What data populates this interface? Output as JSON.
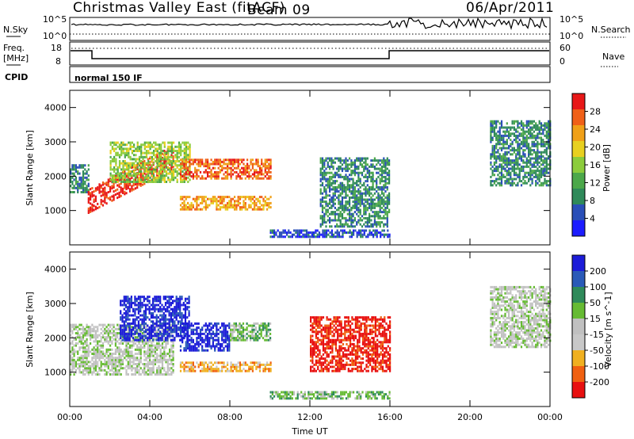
{
  "header": {
    "title": "Christmas Valley East (fitACF)",
    "beam": "Beam 09",
    "date": "06/Apr/2011"
  },
  "summary": {
    "nsky_label": "N.Sky",
    "nsky_ticks": [
      "10^5",
      "10^0"
    ],
    "nsearch_label": "N.Search",
    "freq_label": "Freq.",
    "freq_unit": "[MHz]",
    "freq_ticks": [
      "18",
      "8"
    ],
    "nave_label": "Nave",
    "nave_ticks": [
      "60",
      "0"
    ],
    "cpid_label": "CPID",
    "cpid_value": "normal 150 IF"
  },
  "colors": {
    "power": [
      "#1c1cff",
      "#2a4fb8",
      "#2f8a5a",
      "#4ca84a",
      "#8ccc3c",
      "#e8d020",
      "#f0a018",
      "#f06018",
      "#e81818"
    ],
    "velocity": [
      "#1c1cd8",
      "#2a5ab8",
      "#2f8a5a",
      "#66bb33",
      "#c0c0c0",
      "#c8c8c8",
      "#f0b020",
      "#f06010",
      "#e81010"
    ]
  },
  "chart_data": [
    {
      "type": "heatmap",
      "panel": "power",
      "xlabel": "",
      "ylabel": "Slant Range [km]",
      "xlim": [
        "00:00",
        "24:00"
      ],
      "ylim": [
        0,
        4500
      ],
      "yticks": [
        "1000",
        "2000",
        "3000",
        "4000"
      ],
      "colorbar_label": "Power [dB]",
      "colorbar_ticks": [
        "4",
        "8",
        "12",
        "16",
        "20",
        "24",
        "28"
      ],
      "bands": [
        {
          "from": 0.0,
          "to": 0.9,
          "low": 1500,
          "high": 2300,
          "level": 2
        },
        {
          "from": 0.9,
          "to": 5.2,
          "low": 900,
          "high": 1600,
          "rise": 1300,
          "level": 8
        },
        {
          "from": 2.0,
          "to": 6.0,
          "low": 1800,
          "high": 3000,
          "level": 4
        },
        {
          "from": 5.5,
          "to": 10.0,
          "low": 1900,
          "high": 2500,
          "level": 7
        },
        {
          "from": 5.5,
          "to": 10.0,
          "low": 1000,
          "high": 1400,
          "level": 6
        },
        {
          "from": 10.0,
          "to": 16.0,
          "low": 200,
          "high": 400,
          "level": 1
        },
        {
          "from": 12.5,
          "to": 16.0,
          "low": 500,
          "high": 2500,
          "level": 2
        },
        {
          "from": 21.0,
          "to": 24.0,
          "low": 1700,
          "high": 3600,
          "level": 2
        }
      ]
    },
    {
      "type": "heatmap",
      "panel": "velocity",
      "xlabel": "Time UT",
      "ylabel": "Slant Range [km]",
      "xlim": [
        "00:00",
        "24:00"
      ],
      "ylim": [
        0,
        4500
      ],
      "xticks": [
        "00:00",
        "04:00",
        "08:00",
        "12:00",
        "16:00",
        "20:00",
        "00:00"
      ],
      "yticks": [
        "1000",
        "2000",
        "3000",
        "4000"
      ],
      "colorbar_label": "Velocity [m s^-1]",
      "colorbar_ticks": [
        "200",
        "100",
        "50",
        "15",
        "-15",
        "-50",
        "-100",
        "-200"
      ],
      "bands": [
        {
          "from": 0.0,
          "to": 5.2,
          "low": 900,
          "high": 2400,
          "level": 4
        },
        {
          "from": 2.5,
          "to": 6.0,
          "low": 1900,
          "high": 3200,
          "level": 0
        },
        {
          "from": 5.5,
          "to": 8.0,
          "low": 1600,
          "high": 2400,
          "level": 0
        },
        {
          "from": 8.0,
          "to": 10.0,
          "low": 1900,
          "high": 2400,
          "level": 3
        },
        {
          "from": 5.5,
          "to": 10.0,
          "low": 1000,
          "high": 1300,
          "level": 6
        },
        {
          "from": 12.0,
          "to": 16.0,
          "low": 1000,
          "high": 2600,
          "level": 8
        },
        {
          "from": 10.0,
          "to": 16.0,
          "low": 200,
          "high": 400,
          "level": 3
        },
        {
          "from": 21.0,
          "to": 24.0,
          "low": 1700,
          "high": 3500,
          "level": 4
        }
      ]
    }
  ]
}
